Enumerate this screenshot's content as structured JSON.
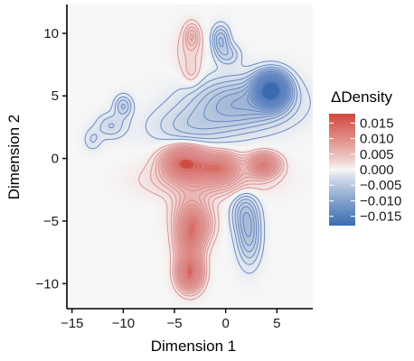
{
  "chart_data": {
    "type": "heatmap",
    "xlabel": "Dimension 1",
    "ylabel": "Dimension 2",
    "xlim": [
      -15.5,
      8.5
    ],
    "ylim": [
      -12,
      12.3
    ],
    "x_ticks": [
      -15,
      -10,
      -5,
      0,
      5
    ],
    "x_tick_labels": [
      "−15",
      "−10",
      "−5",
      "0",
      "5"
    ],
    "y_ticks": [
      -10,
      -5,
      0,
      5,
      10
    ],
    "y_tick_labels": [
      "−10",
      "−5",
      "0",
      "5",
      "10"
    ],
    "grid": false,
    "legend": {
      "title": "ΔDensity",
      "placement": "right",
      "range": [
        -0.018,
        0.018
      ],
      "ticks": [
        0.015,
        0.01,
        0.005,
        0.0,
        -0.005,
        -0.01,
        -0.015
      ],
      "tick_labels": [
        "0.015",
        "0.010",
        "0.005",
        "0.000",
        "−0.005",
        "−0.010",
        "−0.015"
      ]
    },
    "colors": {
      "positive": "#d1483e",
      "neutral": "#f7f7f7",
      "negative": "#3a6bb0",
      "positive_contour": "#d98a8a",
      "negative_contour": "#5b7fc0"
    },
    "contour_levels": [
      0.001,
      0.002,
      0.003,
      0.004,
      0.005,
      0.006,
      0.007,
      0.008,
      0.009,
      0.01,
      0.011,
      0.012,
      0.013,
      0.014,
      0.015,
      0.016
    ],
    "regions": [
      {
        "sign": "negative",
        "cx": 4.5,
        "cy": 5.5,
        "sx": 1.1,
        "sy": 0.9,
        "peak": -0.018
      },
      {
        "sign": "negative",
        "cx": 1.5,
        "cy": 4.4,
        "sx": 3.4,
        "sy": 1.4,
        "peak": -0.007
      },
      {
        "sign": "negative",
        "cx": -3.5,
        "cy": 2.5,
        "sx": 2.8,
        "sy": 1.1,
        "peak": -0.003
      },
      {
        "sign": "negative",
        "cx": -0.5,
        "cy": 9.5,
        "sx": 0.6,
        "sy": 0.8,
        "peak": -0.005
      },
      {
        "sign": "negative",
        "cx": 0.3,
        "cy": 8.3,
        "sx": 0.8,
        "sy": 0.6,
        "peak": -0.003
      },
      {
        "sign": "negative",
        "cx": 1.8,
        "cy": -4.2,
        "sx": 0.9,
        "sy": 1.3,
        "peak": -0.004
      },
      {
        "sign": "negative",
        "cx": 2.3,
        "cy": -6.3,
        "sx": 0.8,
        "sy": 1.6,
        "peak": -0.005
      },
      {
        "sign": "negative",
        "cx": -10.0,
        "cy": 4.2,
        "sx": 0.6,
        "sy": 0.6,
        "peak": -0.004
      },
      {
        "sign": "negative",
        "cx": -11.2,
        "cy": 2.6,
        "sx": 1.0,
        "sy": 0.7,
        "peak": -0.003
      },
      {
        "sign": "negative",
        "cx": -13.0,
        "cy": 1.5,
        "sx": 0.6,
        "sy": 0.6,
        "peak": -0.002
      },
      {
        "sign": "positive",
        "cx": -4.0,
        "cy": -0.3,
        "sx": 1.4,
        "sy": 0.8,
        "peak": 0.016
      },
      {
        "sign": "positive",
        "cx": -0.6,
        "cy": -0.6,
        "sx": 1.3,
        "sy": 0.7,
        "peak": 0.01
      },
      {
        "sign": "positive",
        "cx": 3.7,
        "cy": -0.5,
        "sx": 1.0,
        "sy": 0.6,
        "peak": 0.012
      },
      {
        "sign": "positive",
        "cx": -1.8,
        "cy": -1.7,
        "sx": 3.5,
        "sy": 0.9,
        "peak": 0.006
      },
      {
        "sign": "positive",
        "cx": -3.5,
        "cy": -6.5,
        "sx": 0.9,
        "sy": 1.4,
        "peak": 0.01
      },
      {
        "sign": "positive",
        "cx": -3.5,
        "cy": -9.2,
        "sx": 0.8,
        "sy": 0.9,
        "peak": 0.014
      },
      {
        "sign": "positive",
        "cx": -3.4,
        "cy": -4.3,
        "sx": 1.2,
        "sy": 1.3,
        "peak": 0.005
      },
      {
        "sign": "positive",
        "cx": -2.5,
        "cy": -5.3,
        "sx": 1.0,
        "sy": 1.0,
        "peak": 0.004
      },
      {
        "sign": "positive",
        "cx": -3.3,
        "cy": 9.8,
        "sx": 0.5,
        "sy": 0.7,
        "peak": 0.004
      },
      {
        "sign": "positive",
        "cx": -3.5,
        "cy": 8.5,
        "sx": 1.0,
        "sy": 1.3,
        "peak": 0.002
      },
      {
        "sign": "positive",
        "cx": -3.3,
        "cy": 6.8,
        "sx": 0.6,
        "sy": 0.7,
        "peak": 0.002
      }
    ]
  }
}
